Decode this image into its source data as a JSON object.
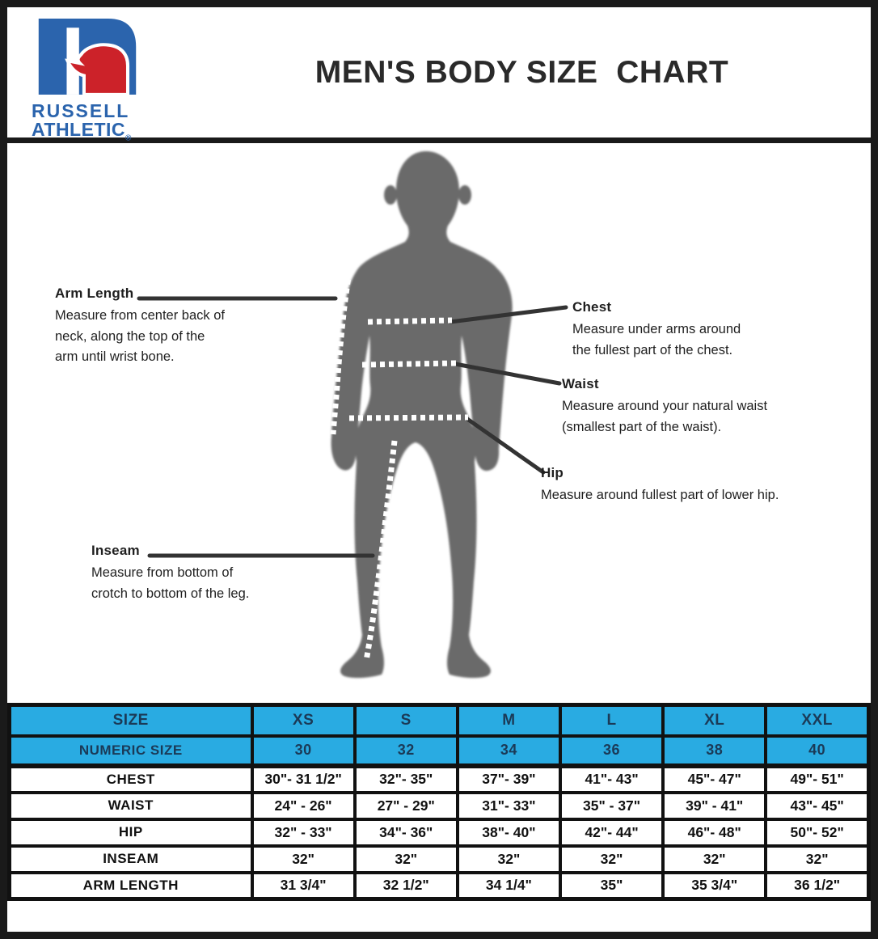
{
  "brand": {
    "line1": "RUSSELL",
    "line2": "ATHLETIC",
    "reg": "®"
  },
  "title": "MEN'S BODY SIZE  CHART",
  "annotations": {
    "arm_length": {
      "label": "Arm Length",
      "desc": "Measure from center back of\nneck, along the top of the\narm until wrist bone."
    },
    "chest": {
      "label": "Chest",
      "desc": "Measure under arms around\nthe fullest part of the chest."
    },
    "waist": {
      "label": "Waist",
      "desc": "Measure around your natural waist\n(smallest part of the waist)."
    },
    "hip": {
      "label": "Hip",
      "desc": "Measure around fullest part of lower hip."
    },
    "inseam": {
      "label": "Inseam",
      "desc": "Measure from bottom of\ncrotch to bottom of the leg."
    }
  },
  "chart_data": {
    "type": "table",
    "columns": [
      "SIZE",
      "XS",
      "S",
      "M",
      "L",
      "XL",
      "XXL"
    ],
    "rows": [
      {
        "label": "NUMERIC SIZE",
        "header": true,
        "values": [
          "30",
          "32",
          "34",
          "36",
          "38",
          "40"
        ]
      },
      {
        "label": "CHEST",
        "values": [
          "30\"- 31 1/2\"",
          "32\"- 35\"",
          "37\"- 39\"",
          "41\"- 43\"",
          "45\"- 47\"",
          "49\"- 51\""
        ]
      },
      {
        "label": "WAIST",
        "values": [
          "24\" - 26\"",
          "27\" - 29\"",
          "31\"- 33\"",
          "35\" - 37\"",
          "39\" - 41\"",
          "43\"- 45\""
        ]
      },
      {
        "label": "HIP",
        "values": [
          "32\" - 33\"",
          "34\"- 36\"",
          "38\"- 40\"",
          "42\"- 44\"",
          "46\"- 48\"",
          "50\"- 52\""
        ]
      },
      {
        "label": "INSEAM",
        "values": [
          "32\"",
          "32\"",
          "32\"",
          "32\"",
          "32\"",
          "32\""
        ]
      },
      {
        "label": "ARM LENGTH",
        "values": [
          "31 3/4\"",
          "32 1/2\"",
          "34 1/4\"",
          "35\"",
          "35 3/4\"",
          "36 1/2\""
        ]
      }
    ]
  },
  "colors": {
    "accent": "#29ABE2",
    "header-text": "#1B3A57",
    "logo-blue": "#2B64AD",
    "logo-red": "#CC2229",
    "silhouette": "#6A6A6A",
    "line": "#333333",
    "border": "#1A1A1A"
  }
}
